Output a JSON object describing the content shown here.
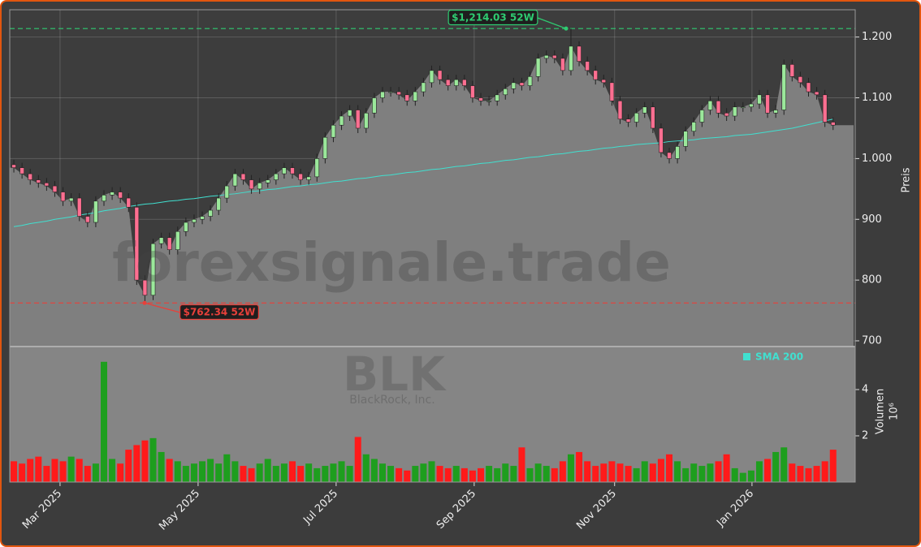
{
  "chart_data": [
    {
      "type": "candlestick",
      "ylabel": "Preis",
      "categories": [
        null,
        null,
        null,
        null,
        null,
        null,
        null,
        null,
        null,
        null,
        null,
        null,
        null,
        null,
        null,
        null,
        null,
        null,
        null,
        null,
        null,
        null,
        null,
        null,
        null,
        null,
        null,
        null,
        null,
        null,
        null,
        null,
        null,
        null,
        null,
        null,
        null,
        null,
        null,
        null,
        null,
        null,
        null,
        null,
        null,
        null,
        null,
        null,
        null,
        null,
        null,
        null,
        null,
        null,
        null,
        null,
        null,
        null,
        null,
        null,
        null,
        null,
        null,
        null,
        null,
        null,
        null,
        null,
        null,
        null,
        null,
        null,
        null,
        null,
        null,
        null,
        null,
        null,
        null,
        null,
        null,
        null,
        null,
        null,
        null,
        null,
        null,
        null,
        null,
        null,
        null,
        null,
        null,
        null,
        null,
        null,
        null,
        null,
        null,
        null,
        null
      ],
      "open": [
        990,
        985,
        975,
        965,
        960,
        955,
        945,
        930,
        935,
        905,
        895,
        930,
        940,
        945,
        935,
        920,
        800,
        775,
        860,
        870,
        850,
        880,
        895,
        900,
        905,
        915,
        935,
        955,
        975,
        965,
        950,
        960,
        965,
        975,
        985,
        975,
        965,
        970,
        1000,
        1035,
        1055,
        1070,
        1080,
        1050,
        1075,
        1100,
        1110,
        1110,
        1105,
        1095,
        1110,
        1125,
        1145,
        1130,
        1120,
        1130,
        1120,
        1100,
        1095,
        1095,
        1105,
        1115,
        1125,
        1120,
        1135,
        1165,
        1170,
        1165,
        1145,
        1185,
        1160,
        1145,
        1130,
        1125,
        1095,
        1065,
        1060,
        1075,
        1085,
        1050,
        1010,
        1000,
        1020,
        1045,
        1060,
        1080,
        1095,
        1075,
        1070,
        1085,
        1085,
        1090,
        1105,
        1075,
        1080,
        1155,
        1135,
        1125,
        1110,
        1105,
        1060
      ],
      "high": [
        998,
        993,
        983,
        973,
        968,
        963,
        953,
        943,
        943,
        913,
        938,
        948,
        953,
        953,
        943,
        928,
        808,
        868,
        878,
        878,
        888,
        903,
        908,
        913,
        923,
        943,
        963,
        983,
        983,
        973,
        968,
        973,
        983,
        993,
        993,
        983,
        978,
        1008,
        1043,
        1063,
        1078,
        1088,
        1088,
        1083,
        1108,
        1118,
        1118,
        1118,
        1113,
        1118,
        1133,
        1153,
        1153,
        1138,
        1138,
        1138,
        1128,
        1108,
        1103,
        1113,
        1123,
        1133,
        1133,
        1143,
        1173,
        1178,
        1178,
        1173,
        1214.03,
        1193,
        1168,
        1153,
        1138,
        1133,
        1103,
        1073,
        1083,
        1093,
        1093,
        1058,
        1018,
        1028,
        1053,
        1068,
        1088,
        1103,
        1103,
        1083,
        1093,
        1093,
        1098,
        1113,
        1113,
        1088,
        1163,
        1163,
        1143,
        1133,
        1118,
        1113,
        1068
      ],
      "low": [
        977,
        967,
        957,
        952,
        947,
        937,
        922,
        922,
        897,
        887,
        887,
        922,
        932,
        927,
        912,
        792,
        762.34,
        767,
        852,
        842,
        842,
        872,
        887,
        892,
        897,
        907,
        927,
        947,
        957,
        942,
        942,
        952,
        957,
        967,
        967,
        957,
        957,
        962,
        992,
        1027,
        1047,
        1062,
        1042,
        1042,
        1067,
        1092,
        1102,
        1097,
        1087,
        1087,
        1102,
        1117,
        1122,
        1112,
        1112,
        1112,
        1092,
        1087,
        1087,
        1087,
        1097,
        1107,
        1112,
        1112,
        1127,
        1157,
        1157,
        1137,
        1137,
        1152,
        1137,
        1122,
        1117,
        1087,
        1057,
        1052,
        1052,
        1067,
        1042,
        1002,
        992,
        992,
        1012,
        1037,
        1052,
        1072,
        1067,
        1062,
        1062,
        1077,
        1077,
        1082,
        1067,
        1067,
        1072,
        1127,
        1117,
        1102,
        1097,
        1052,
        1047
      ],
      "close": [
        985,
        975,
        965,
        960,
        955,
        945,
        930,
        935,
        905,
        895,
        930,
        940,
        945,
        935,
        920,
        800,
        775,
        860,
        870,
        850,
        880,
        895,
        900,
        905,
        915,
        935,
        955,
        975,
        965,
        950,
        960,
        965,
        975,
        985,
        975,
        965,
        970,
        1000,
        1035,
        1055,
        1070,
        1080,
        1050,
        1075,
        1100,
        1110,
        1110,
        1105,
        1095,
        1110,
        1125,
        1145,
        1130,
        1120,
        1130,
        1120,
        1100,
        1095,
        1095,
        1105,
        1115,
        1125,
        1120,
        1135,
        1165,
        1170,
        1165,
        1145,
        1185,
        1160,
        1145,
        1130,
        1125,
        1095,
        1065,
        1060,
        1075,
        1085,
        1050,
        1010,
        1000,
        1020,
        1045,
        1060,
        1080,
        1095,
        1075,
        1070,
        1085,
        1085,
        1090,
        1105,
        1075,
        1080,
        1155,
        1135,
        1125,
        1110,
        1105,
        1060,
        1055
      ],
      "up_color": "#9be89b",
      "down_color": "#ff6f91",
      "area_color": "#7f7f7f",
      "series": [
        {
          "name": "SMA 200",
          "color": "#40e0d0",
          "values": [
            888,
            890,
            893,
            895,
            897,
            900,
            902,
            904,
            907,
            909,
            911,
            914,
            916,
            918,
            921,
            923,
            925,
            926,
            928,
            930,
            931,
            933,
            934,
            936,
            938,
            939,
            941,
            942,
            944,
            946,
            947,
            949,
            950,
            952,
            954,
            955,
            957,
            958,
            960,
            962,
            963,
            965,
            967,
            968,
            970,
            972,
            973,
            975,
            977,
            978,
            980,
            982,
            983,
            985,
            987,
            988,
            990,
            992,
            993,
            995,
            997,
            998,
            1000,
            1002,
            1003,
            1005,
            1007,
            1008,
            1010,
            1012,
            1013,
            1015,
            1017,
            1018,
            1020,
            1021,
            1023,
            1024,
            1025,
            1026,
            1028,
            1029,
            1030,
            1031,
            1033,
            1034,
            1035,
            1036,
            1038,
            1039,
            1040,
            1042,
            1044,
            1046,
            1048,
            1050,
            1053,
            1056,
            1059,
            1062,
            1065
          ]
        }
      ],
      "annotations": [
        {
          "value": 1214.03,
          "label": "$1,214.03 52W",
          "color": "#2ecc71"
        },
        {
          "value": 762.34,
          "label": "$762.34 52W",
          "color": "#e8403a"
        }
      ],
      "xlim": [
        -0.5,
        102.7
      ],
      "ylim": [
        690.6,
        1245
      ],
      "yticks": [
        700,
        800,
        900,
        {
          "value": 1000,
          "label": "1.000"
        },
        {
          "value": 1100,
          "label": "1.100"
        },
        {
          "value": 1200,
          "label": "1.200"
        }
      ],
      "grid": true,
      "legend": "lower right"
    },
    {
      "type": "bar",
      "ylabel": "Volumen",
      "offset_label": "10⁶",
      "values": [
        0.9,
        0.8,
        1.0,
        1.1,
        0.7,
        1.0,
        0.9,
        1.1,
        1.0,
        0.7,
        0.8,
        5.2,
        1.0,
        0.8,
        1.4,
        1.6,
        1.8,
        1.9,
        1.3,
        1.0,
        0.9,
        0.7,
        0.8,
        0.9,
        1.0,
        0.8,
        1.2,
        0.9,
        0.7,
        0.6,
        0.8,
        1.0,
        0.7,
        0.8,
        0.9,
        0.7,
        0.8,
        0.6,
        0.7,
        0.8,
        0.9,
        0.7,
        1.95,
        1.2,
        1.0,
        0.8,
        0.7,
        0.6,
        0.5,
        0.7,
        0.8,
        0.9,
        0.7,
        0.6,
        0.7,
        0.6,
        0.5,
        0.6,
        0.7,
        0.6,
        0.8,
        0.7,
        1.5,
        0.6,
        0.8,
        0.7,
        0.6,
        0.9,
        1.2,
        1.3,
        0.9,
        0.7,
        0.8,
        0.9,
        0.8,
        0.7,
        0.6,
        0.9,
        0.8,
        1.0,
        1.2,
        0.9,
        0.6,
        0.8,
        0.7,
        0.8,
        0.9,
        1.2,
        0.6,
        0.4,
        0.5,
        0.9,
        1.0,
        1.3,
        1.5,
        0.8,
        0.7,
        0.6,
        0.7,
        0.9,
        1.4
      ],
      "up_color": "#1e9e1e",
      "down_color": "#ff1a1a",
      "ylim": [
        0,
        5.86
      ],
      "yticks": [
        2,
        4
      ],
      "xticks": [
        {
          "value": 5.64,
          "label": "Mar 2025"
        },
        {
          "value": 22.49,
          "label": "May 2025"
        },
        {
          "value": 39.34,
          "label": "Jul 2025"
        },
        {
          "value": 56.19,
          "label": "Sep 2025"
        },
        {
          "value": 73.33,
          "label": "Nov 2025"
        },
        {
          "value": 90.1,
          "label": "Jan 2026"
        }
      ]
    }
  ],
  "watermark": {
    "site": "forexsignale.trade",
    "ticker": "BLK",
    "company": "BlackRock, Inc."
  }
}
